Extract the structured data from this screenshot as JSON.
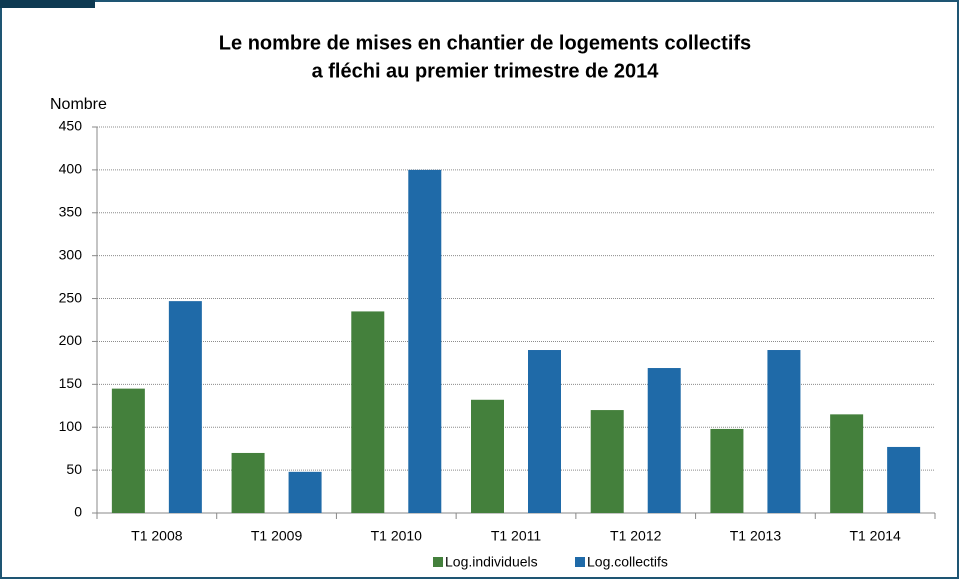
{
  "chart_data": {
    "type": "bar",
    "title": [
      "Le nombre de mises en chantier de logements collectifs",
      "a fléchi au premier trimestre de 2014"
    ],
    "y_label": "Nombre",
    "categories": [
      "T1 2008",
      "T1 2009",
      "T1 2010",
      "T1 2011",
      "T1 2012",
      "T1 2013",
      "T1 2014"
    ],
    "series": [
      {
        "name": "Log.individuels",
        "color": "#44803c",
        "values": [
          145,
          70,
          235,
          132,
          120,
          98,
          115
        ]
      },
      {
        "name": "Log.collectifs",
        "color": "#1f6aa8",
        "values": [
          247,
          48,
          400,
          190,
          169,
          190,
          77
        ]
      }
    ],
    "ylim": [
      0,
      450
    ],
    "yticks": [
      0,
      50,
      100,
      150,
      200,
      250,
      300,
      350,
      400,
      450
    ],
    "grid": true,
    "legend": "bottom"
  }
}
